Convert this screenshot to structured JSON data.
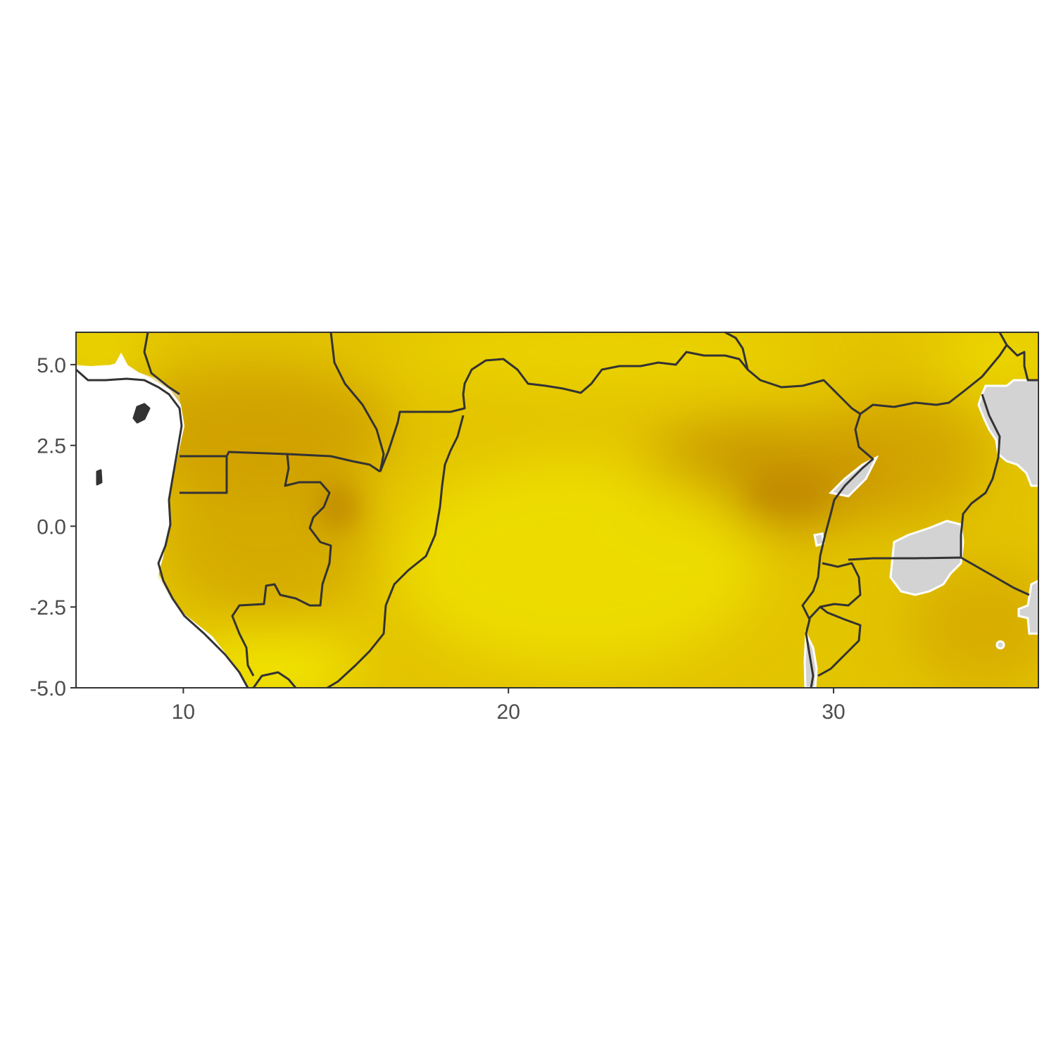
{
  "map": {
    "type": "raster-map",
    "extent": {
      "lon": [
        6.7,
        36.3
      ],
      "lat": [
        -5.0,
        6.0
      ]
    },
    "x_ticks": [
      {
        "value": 10,
        "label": "10"
      },
      {
        "value": 20,
        "label": "20"
      },
      {
        "value": 30,
        "label": "30"
      }
    ],
    "y_ticks": [
      {
        "value": 5.0,
        "label": "5.0"
      },
      {
        "value": 2.5,
        "label": "2.5"
      },
      {
        "value": 0.0,
        "label": "0.0"
      },
      {
        "value": -2.5,
        "label": "-2.5"
      },
      {
        "value": -5.0,
        "label": "-5.0"
      }
    ],
    "grid": true,
    "colors": {
      "raster_light": "#f2e800",
      "raster_mid": "#e0c000",
      "raster_dark": "#c99400",
      "ocean": "#ffffff",
      "no_data": "#d3d3d3",
      "border": "#333333",
      "axis_text": "#4d4d4d",
      "grid": "#ebebeb"
    }
  }
}
